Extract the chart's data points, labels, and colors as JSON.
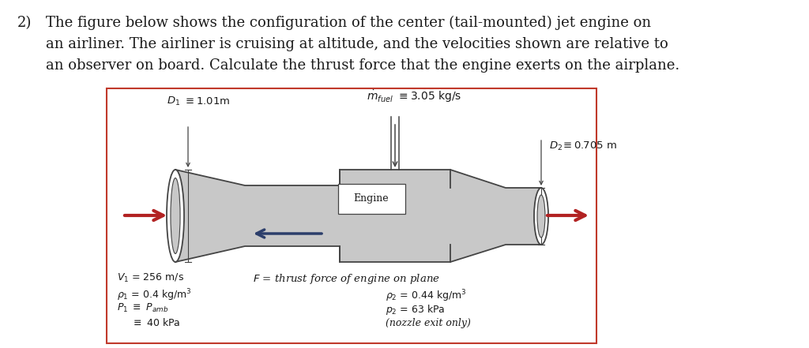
{
  "fig_bg": "#ffffff",
  "text_color": "#1a1a1a",
  "box_edge_color": "#c0392b",
  "engine_fill": "#c8c8c8",
  "engine_edge": "#444444",
  "arrow_red": "#b22222",
  "arrow_dark": "#2c3e6b",
  "title_fontsize": 13.0,
  "label_fontsize": 9.0,
  "title_line1": "The figure below shows the configuration of the center (tail-mounted) jet engine on",
  "title_line2": "an airliner. The airliner is cruising at altitude, and the velocities shown are relative to",
  "title_line3": "an observer on board. Calculate the thrust force that the engine exerts on the airplane.",
  "number": "2)"
}
